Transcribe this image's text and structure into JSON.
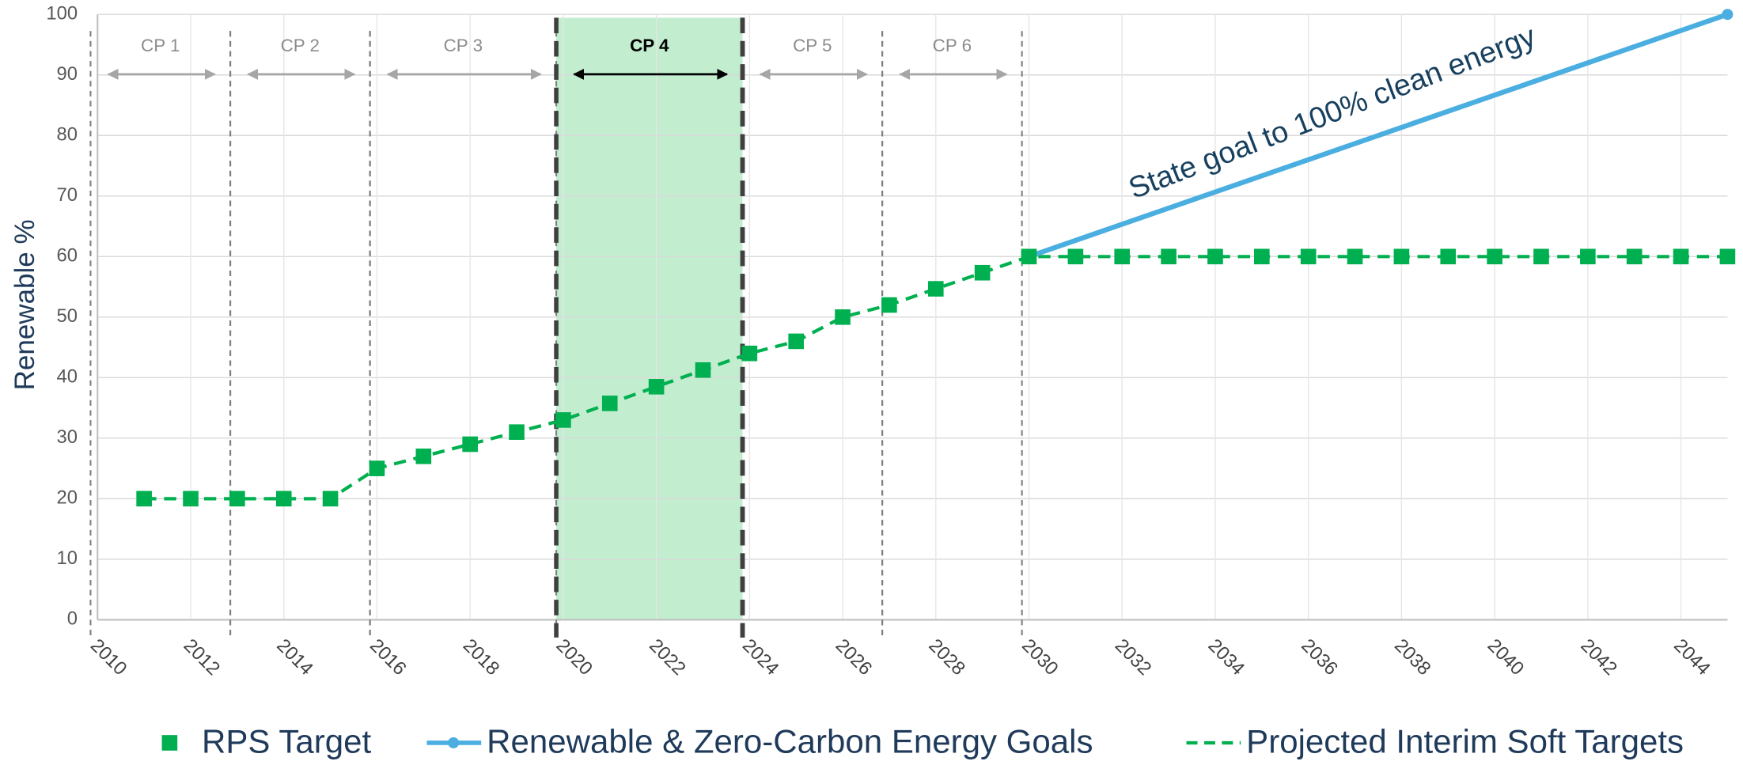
{
  "chart_data": {
    "type": "line",
    "y_label": "Renewable %",
    "annotation": "State goal to 100% clean energy",
    "x": [
      2011,
      2012,
      2013,
      2014,
      2015,
      2016,
      2017,
      2018,
      2019,
      2020,
      2021,
      2022,
      2023,
      2024,
      2025,
      2026,
      2027,
      2028,
      2029,
      2030,
      2031,
      2032,
      2033,
      2034,
      2035,
      2036,
      2037,
      2038,
      2039,
      2040,
      2041,
      2042,
      2043,
      2044,
      2045
    ],
    "series": [
      {
        "name": "RPS Target",
        "color": "#00b050",
        "style": "markers",
        "values": [
          20,
          20,
          20,
          20,
          20,
          25,
          27,
          29,
          31,
          33,
          35.75,
          38.5,
          41.25,
          44,
          46,
          50,
          52,
          54.67,
          57.33,
          60,
          60,
          60,
          60,
          60,
          60,
          60,
          60,
          60,
          60,
          60,
          60,
          60,
          60,
          60,
          60
        ]
      },
      {
        "name": "Renewable & Zero-Carbon Energy Goals",
        "color": "#4aaee0",
        "style": "line",
        "values": [
          null,
          null,
          null,
          null,
          null,
          null,
          null,
          null,
          null,
          null,
          null,
          null,
          null,
          null,
          null,
          null,
          null,
          null,
          null,
          60,
          null,
          null,
          null,
          null,
          null,
          null,
          null,
          null,
          null,
          null,
          null,
          null,
          null,
          null,
          100
        ]
      },
      {
        "name": "Projected Interim Soft Targets",
        "color": "#00b050",
        "style": "dashed",
        "values": [
          20,
          20,
          20,
          20,
          20,
          25,
          27,
          29,
          31,
          33,
          35.75,
          38.5,
          41.25,
          44,
          46,
          50,
          52,
          54.67,
          57.33,
          60,
          60,
          60,
          60,
          60,
          60,
          60,
          60,
          60,
          60,
          60,
          60,
          60,
          60,
          60,
          60
        ]
      }
    ],
    "compliance_periods": [
      {
        "label": "CP 1",
        "start": 2009.85,
        "end": 2012.85
      },
      {
        "label": "CP 2",
        "start": 2012.85,
        "end": 2015.85
      },
      {
        "label": "CP 3",
        "start": 2015.85,
        "end": 2019.85
      },
      {
        "label": "CP 4",
        "start": 2019.85,
        "end": 2023.85,
        "highlight": true
      },
      {
        "label": "CP 5",
        "start": 2023.85,
        "end": 2026.85
      },
      {
        "label": "CP 6",
        "start": 2026.85,
        "end": 2029.85
      }
    ],
    "xlim": [
      2010,
      2045
    ],
    "xticks": [
      2010,
      2012,
      2014,
      2016,
      2018,
      2020,
      2022,
      2024,
      2026,
      2028,
      2030,
      2032,
      2034,
      2036,
      2038,
      2040,
      2042,
      2044
    ],
    "ylim": [
      0,
      100
    ],
    "yticks": [
      0,
      10,
      20,
      30,
      40,
      50,
      60,
      70,
      80,
      90,
      100
    ],
    "grid": true
  }
}
